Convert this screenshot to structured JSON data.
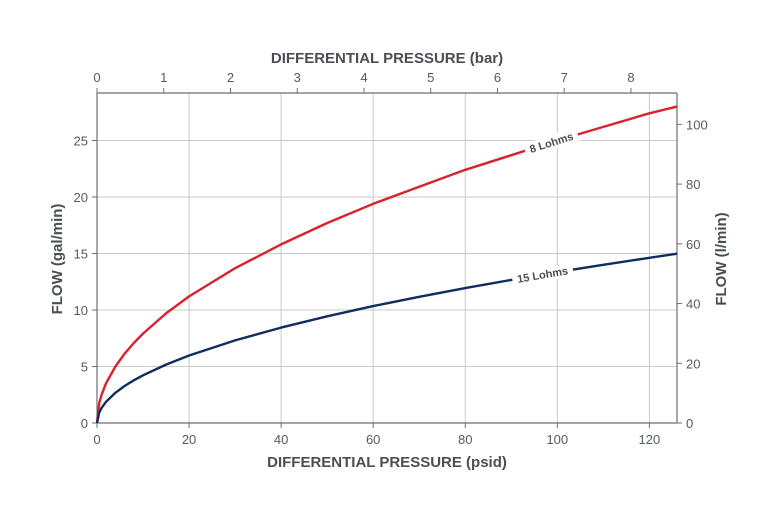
{
  "chart_data": {
    "type": "line",
    "xlabel": "DIFFERENTIAL PRESSURE (psid)",
    "x2label": "DIFFERENTIAL PRESSURE (bar)",
    "ylabel": "FLOW (gal/min)",
    "y2label": "FLOW (l/min)",
    "xlim": [
      0,
      126
    ],
    "ylim": [
      0,
      29.2
    ],
    "x2lim": [
      0,
      8.69
    ],
    "y2lim": [
      0,
      110.5
    ],
    "x_ticks": [
      0,
      20,
      40,
      60,
      80,
      100,
      120
    ],
    "y_ticks": [
      0,
      5,
      10,
      15,
      20,
      25
    ],
    "x2_ticks": [
      0,
      1,
      2,
      3,
      4,
      5,
      6,
      7,
      8
    ],
    "y2_ticks": [
      0,
      20,
      40,
      60,
      80,
      100
    ],
    "grid": true,
    "series": [
      {
        "name": "8 Lohms",
        "color": "#d8232f",
        "x": [
          0,
          0.5,
          1,
          2,
          4,
          6,
          8,
          10,
          15,
          20,
          30,
          40,
          50,
          60,
          70,
          80,
          90,
          100,
          110,
          120,
          126
        ],
        "y": [
          0,
          1.78,
          2.5,
          3.54,
          5.0,
          6.13,
          7.08,
          7.91,
          9.7,
          11.2,
          13.7,
          15.8,
          17.7,
          19.4,
          20.9,
          22.4,
          23.7,
          25.0,
          26.2,
          27.4,
          28.0
        ]
      },
      {
        "name": "15 Lohms",
        "color": "#0f2d5f",
        "x": [
          0,
          0.5,
          1,
          2,
          4,
          6,
          8,
          10,
          15,
          20,
          30,
          40,
          50,
          60,
          70,
          80,
          90,
          100,
          110,
          120,
          126
        ],
        "y": [
          0,
          0.95,
          1.34,
          1.89,
          2.67,
          3.27,
          3.78,
          4.22,
          5.17,
          5.97,
          7.31,
          8.44,
          9.44,
          10.34,
          11.17,
          11.94,
          12.66,
          13.35,
          14.0,
          14.62,
          14.98
        ]
      }
    ]
  }
}
